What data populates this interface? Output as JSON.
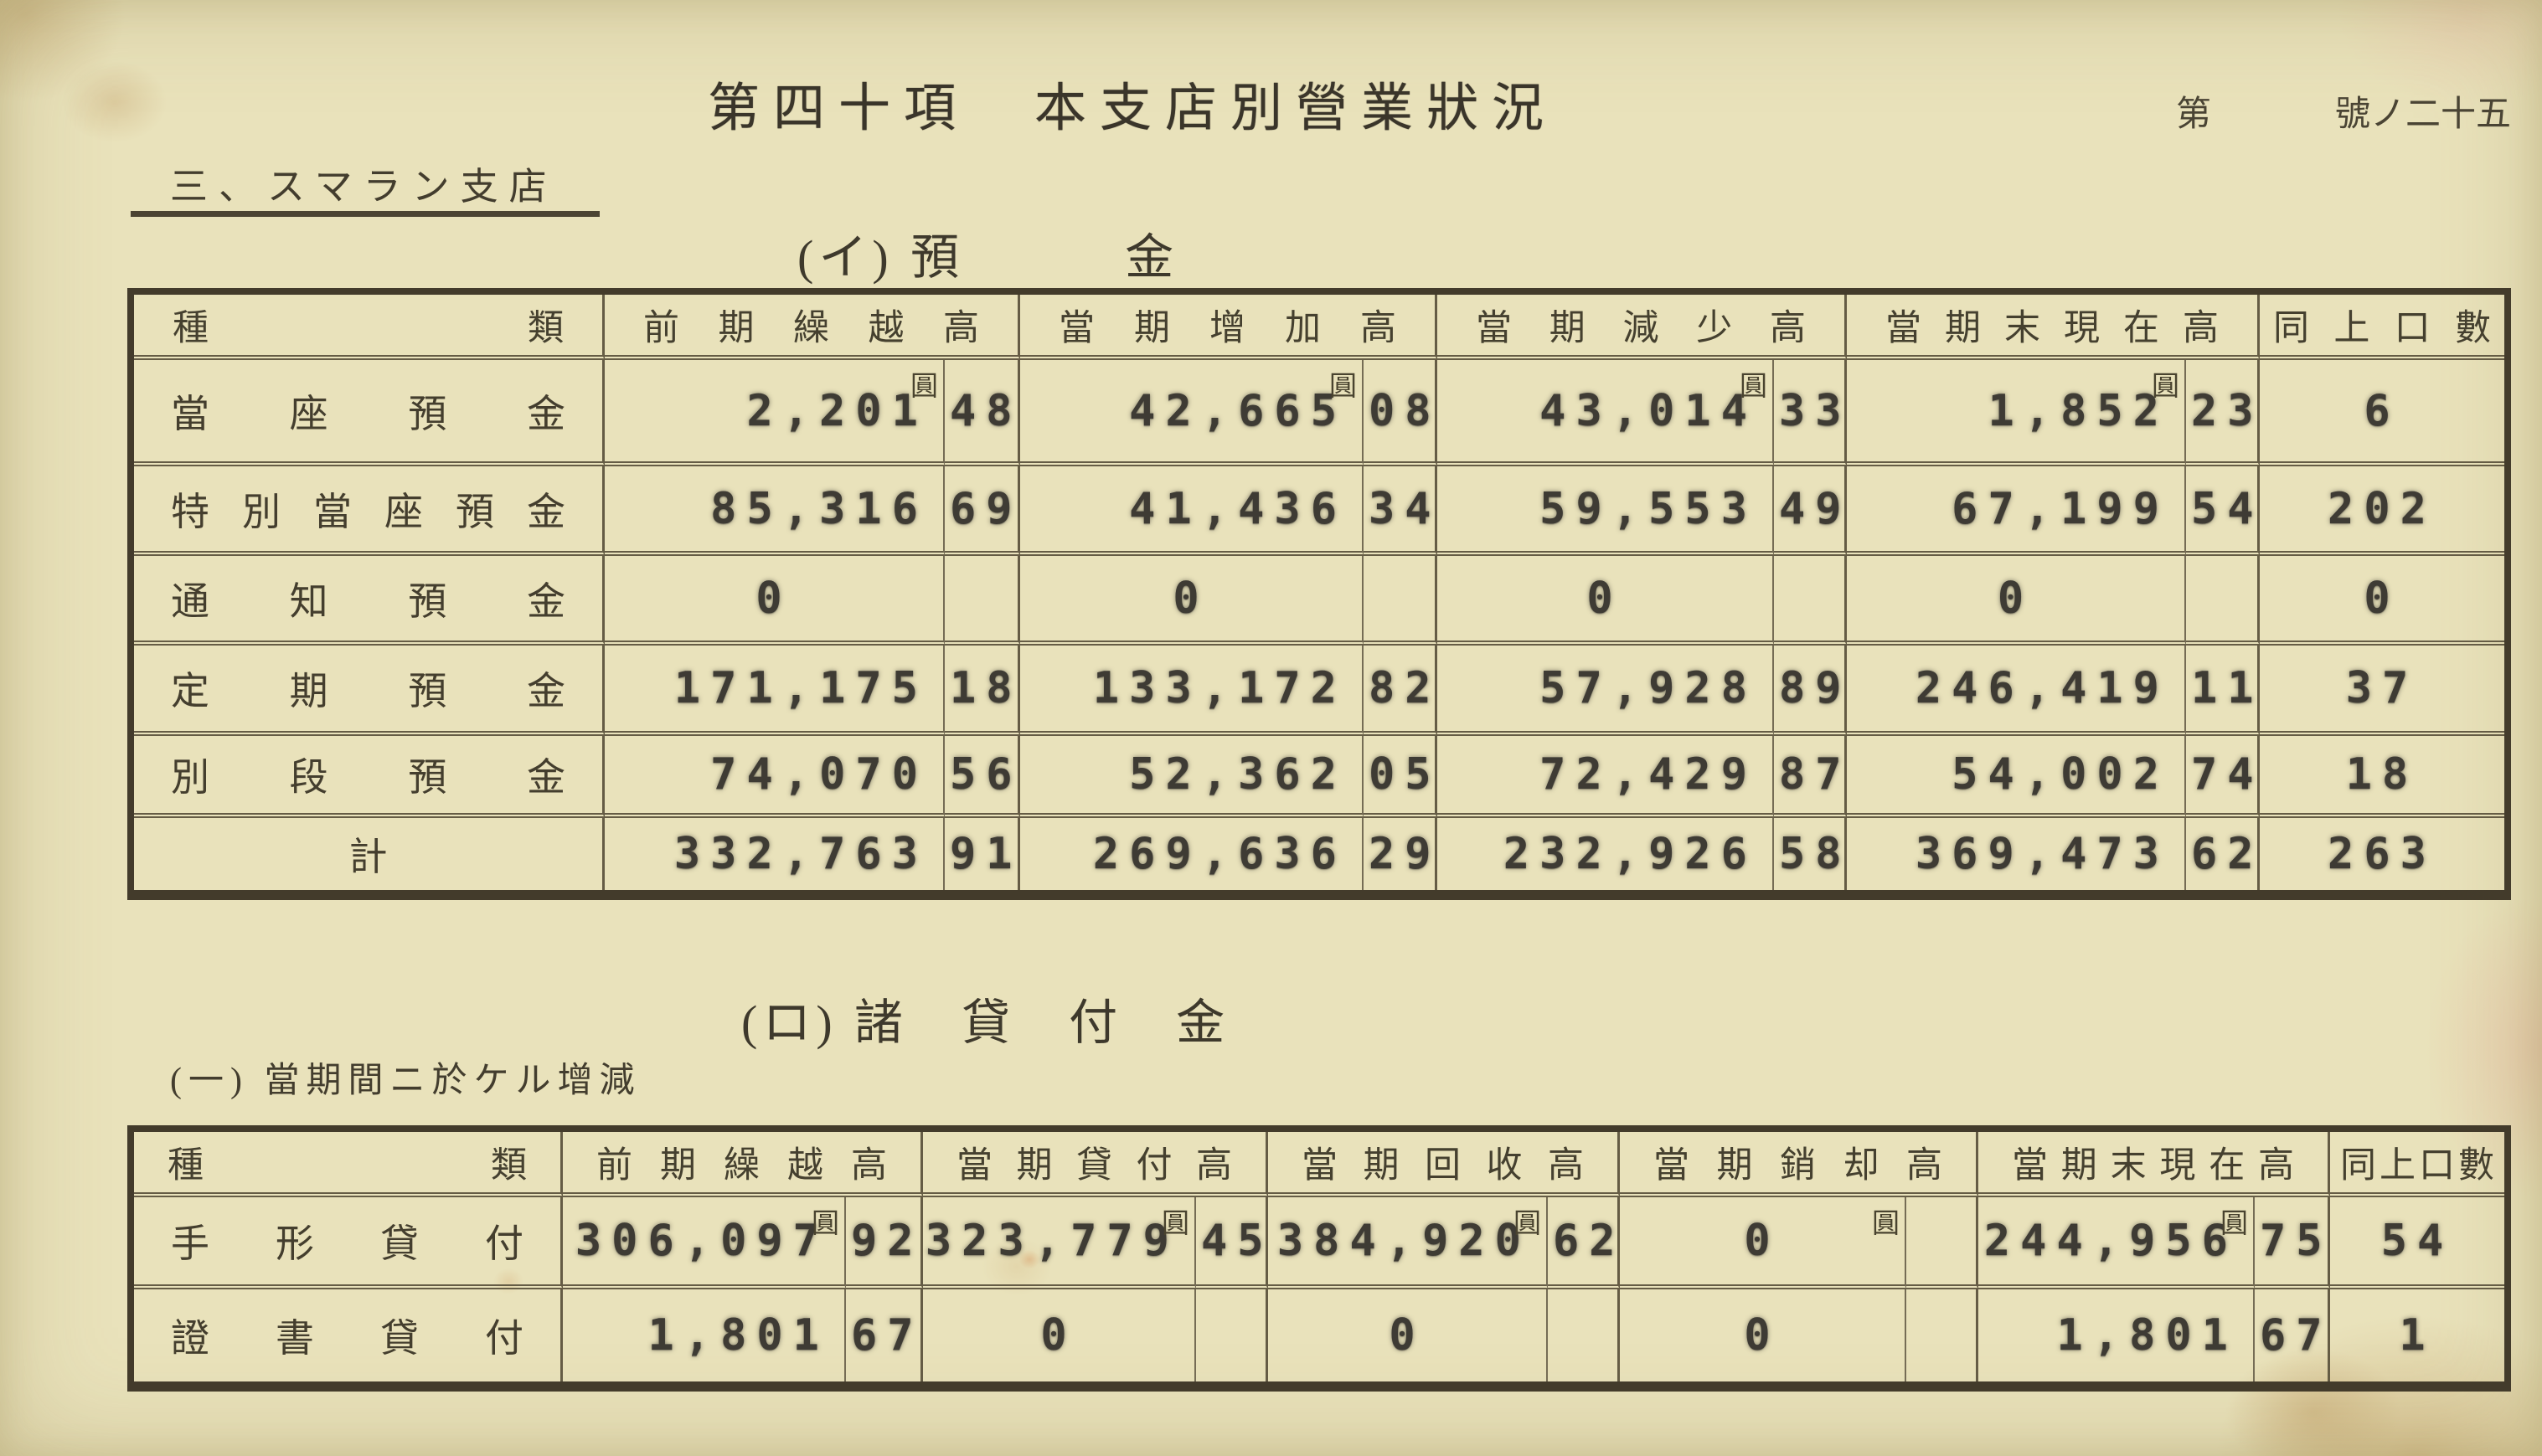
{
  "page": {
    "title": "第四十項　本支店別營業狀況",
    "doc_no_prefix": "第",
    "doc_no_suffix": "號ノ二十五",
    "section_heading": "三、スマラン支店"
  },
  "deposits": {
    "heading": "(イ) 預　　　金",
    "unit": "圓",
    "columns": [
      "種類",
      "前期繰越高",
      "當期增加高",
      "當期減少高",
      "當期末現在高",
      "同上口數"
    ],
    "rows": [
      {
        "label": "當座預金",
        "v1": "2,201",
        "s1": "48",
        "v2": "42,665",
        "s2": "08",
        "v3": "43,014",
        "s3": "33",
        "v4": "1,852",
        "s4": "23",
        "n": "6"
      },
      {
        "label": "特別當座預金",
        "v1": "85,316",
        "s1": "69",
        "v2": "41,436",
        "s2": "34",
        "v3": "59,553",
        "s3": "49",
        "v4": "67,199",
        "s4": "54",
        "n": "202"
      },
      {
        "label": "通知預金",
        "v1": "0",
        "s1": "",
        "v2": "0",
        "s2": "",
        "v3": "0",
        "s3": "",
        "v4": "0",
        "s4": "",
        "n": "0"
      },
      {
        "label": "定期預金",
        "v1": "171,175",
        "s1": "18",
        "v2": "133,172",
        "s2": "82",
        "v3": "57,928",
        "s3": "89",
        "v4": "246,419",
        "s4": "11",
        "n": "37"
      },
      {
        "label": "別段預金",
        "v1": "74,070",
        "s1": "56",
        "v2": "52,362",
        "s2": "05",
        "v3": "72,429",
        "s3": "87",
        "v4": "54,002",
        "s4": "74",
        "n": "18"
      },
      {
        "label": "計",
        "v1": "332,763",
        "s1": "91",
        "v2": "269,636",
        "s2": "29",
        "v3": "232,926",
        "s3": "58",
        "v4": "369,473",
        "s4": "62",
        "n": "263"
      }
    ]
  },
  "loans": {
    "heading": "(ロ) 諸　貸　付　金",
    "subheading": "(一) 當期間ニ於ケル增減",
    "unit": "圓",
    "columns": [
      "種類",
      "前期繰越高",
      "當期貸付高",
      "當期回收高",
      "當期銷却高",
      "當期末現在高",
      "同上口數"
    ],
    "rows": [
      {
        "label": "手形貸付",
        "v1": "306,097",
        "s1": "92",
        "v2": "323,779",
        "s2": "45",
        "v3": "384,920",
        "s3": "62",
        "v4": "0",
        "s4": "",
        "v5": "244,956",
        "s5": "75",
        "n": "54"
      },
      {
        "label": "證書貸付",
        "v1": "1,801",
        "s1": "67",
        "v2": "0",
        "s2": "",
        "v3": "0",
        "s3": "",
        "v4": "0",
        "s4": "",
        "v5": "1,801",
        "s5": "67",
        "n": "1"
      }
    ]
  }
}
